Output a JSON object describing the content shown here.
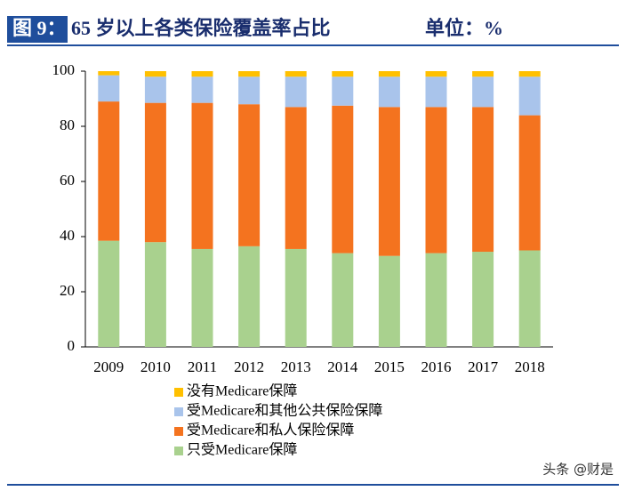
{
  "chart_data": {
    "type": "stacked_bar",
    "figure_label": "图 9：",
    "title": "65 岁以上各类保险覆盖率占比",
    "unit": "单位：%",
    "watermark": "头条 @财是",
    "categories": [
      "2009",
      "2010",
      "2011",
      "2012",
      "2013",
      "2014",
      "2015",
      "2016",
      "2017",
      "2018"
    ],
    "series": [
      {
        "name": "只受Medicare保障",
        "color": "#a9d18e",
        "values": [
          38.5,
          38,
          35.5,
          36.5,
          35.5,
          34,
          33,
          34,
          34.5,
          35
        ]
      },
      {
        "name": "受Medicare和私人保险保障",
        "color": "#f4731f",
        "values": [
          50.5,
          50.5,
          53,
          51.5,
          51.5,
          53.5,
          54,
          53,
          52.5,
          49
        ]
      },
      {
        "name": "受Medicare和其他公共保险保障",
        "color": "#a9c4eb",
        "values": [
          9.5,
          9.5,
          9.5,
          10,
          11,
          10.5,
          11,
          11,
          11,
          14
        ]
      },
      {
        "name": "没有Medicare保障",
        "color": "#ffc000",
        "values": [
          1.5,
          2,
          2,
          2,
          2,
          2,
          2,
          2,
          2,
          2
        ]
      }
    ],
    "ylim": [
      0,
      100
    ],
    "yticks": [
      0,
      20,
      40,
      60,
      80,
      100
    ],
    "grid": false
  }
}
